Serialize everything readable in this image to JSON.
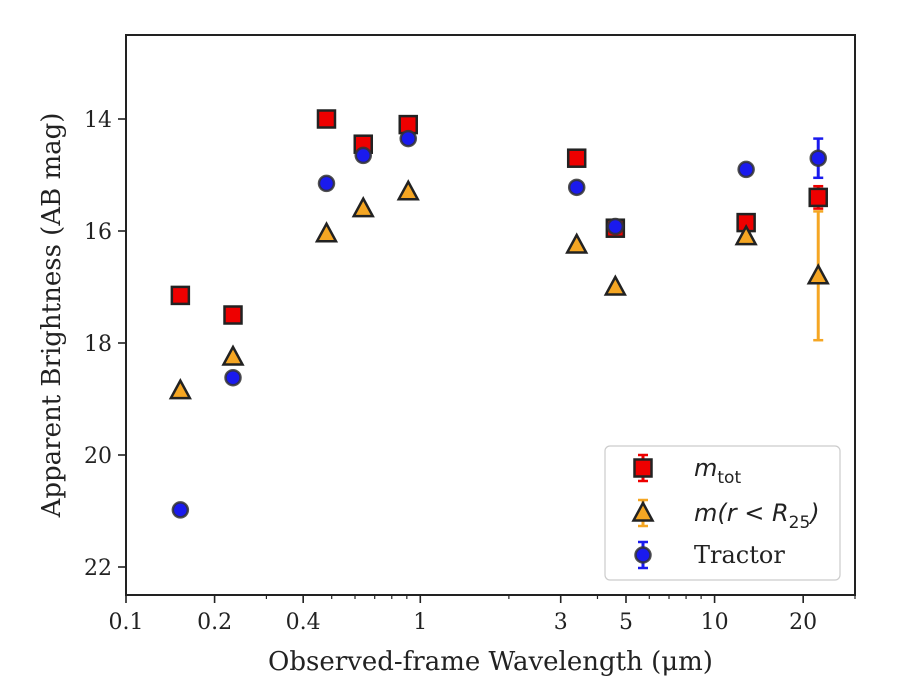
{
  "chart_data": {
    "type": "scatter",
    "xlabel": "Observed-frame Wavelength (μm)",
    "ylabel": "Apparent Brightness (AB mag)",
    "xscale": "log",
    "xlim": [
      0.1,
      30
    ],
    "ylim": [
      22.5,
      12.5
    ],
    "y_inverted": true,
    "x_ticks": [
      0.1,
      0.2,
      0.4,
      1,
      3,
      5,
      10,
      20
    ],
    "x_tick_labels": [
      "0.1",
      "0.2",
      "0.4",
      "1",
      "3",
      "5",
      "10",
      "20"
    ],
    "y_ticks": [
      14,
      16,
      18,
      20,
      22
    ],
    "y_tick_labels": [
      "14",
      "16",
      "18",
      "20",
      "22"
    ],
    "grid": false,
    "legend_position": "bottom-right",
    "series": [
      {
        "name": "m_tot",
        "legend_label": {
          "base": "m",
          "sub": "tot"
        },
        "marker": "square",
        "color": "#ee0000",
        "edgecolor": "#222222",
        "points": [
          {
            "x": 0.153,
            "y": 17.15,
            "yerr": 0.05
          },
          {
            "x": 0.231,
            "y": 17.5,
            "yerr": 0.05
          },
          {
            "x": 0.48,
            "y": 14.0,
            "yerr": 0.03
          },
          {
            "x": 0.64,
            "y": 14.45,
            "yerr": 0.03
          },
          {
            "x": 0.91,
            "y": 14.1,
            "yerr": 0.03
          },
          {
            "x": 3.4,
            "y": 14.7,
            "yerr": 0.03
          },
          {
            "x": 4.6,
            "y": 15.95,
            "yerr": 0.05
          },
          {
            "x": 12.8,
            "y": 15.85,
            "yerr": 0.05
          },
          {
            "x": 22.5,
            "y": 15.4,
            "yerr": 0.2
          }
        ]
      },
      {
        "name": "m(r < R25)",
        "legend_label": {
          "base": "m(r < R",
          "sub": "25",
          "tail": ")"
        },
        "marker": "triangle",
        "color": "#f5a623",
        "edgecolor": "#222222",
        "points": [
          {
            "x": 0.153,
            "y": 18.85,
            "yerr": 0.05
          },
          {
            "x": 0.231,
            "y": 18.25,
            "yerr": 0.05
          },
          {
            "x": 0.48,
            "y": 16.05,
            "yerr": 0.03
          },
          {
            "x": 0.64,
            "y": 15.6,
            "yerr": 0.03
          },
          {
            "x": 0.91,
            "y": 15.3,
            "yerr": 0.03
          },
          {
            "x": 3.4,
            "y": 16.25,
            "yerr": 0.03
          },
          {
            "x": 4.6,
            "y": 17.0,
            "yerr": 0.05
          },
          {
            "x": 12.8,
            "y": 16.1,
            "yerr": 0.05
          },
          {
            "x": 22.5,
            "y": 16.8,
            "yerr": 1.15
          }
        ]
      },
      {
        "name": "Tractor",
        "legend_label": {
          "base": "Tractor"
        },
        "marker": "circle",
        "color": "#1a1aee",
        "edgecolor": "#333333",
        "points": [
          {
            "x": 0.153,
            "y": 20.98,
            "yerr": 0.06
          },
          {
            "x": 0.231,
            "y": 18.62,
            "yerr": 0.06
          },
          {
            "x": 0.48,
            "y": 15.15,
            "yerr": 0.06
          },
          {
            "x": 0.64,
            "y": 14.65,
            "yerr": 0.06
          },
          {
            "x": 0.91,
            "y": 14.35,
            "yerr": 0.06
          },
          {
            "x": 3.4,
            "y": 15.22,
            "yerr": 0.06
          },
          {
            "x": 4.6,
            "y": 15.92,
            "yerr": 0.06
          },
          {
            "x": 12.8,
            "y": 14.9,
            "yerr": 0.06
          },
          {
            "x": 22.5,
            "y": 14.7,
            "yerr": 0.35
          }
        ]
      }
    ]
  }
}
